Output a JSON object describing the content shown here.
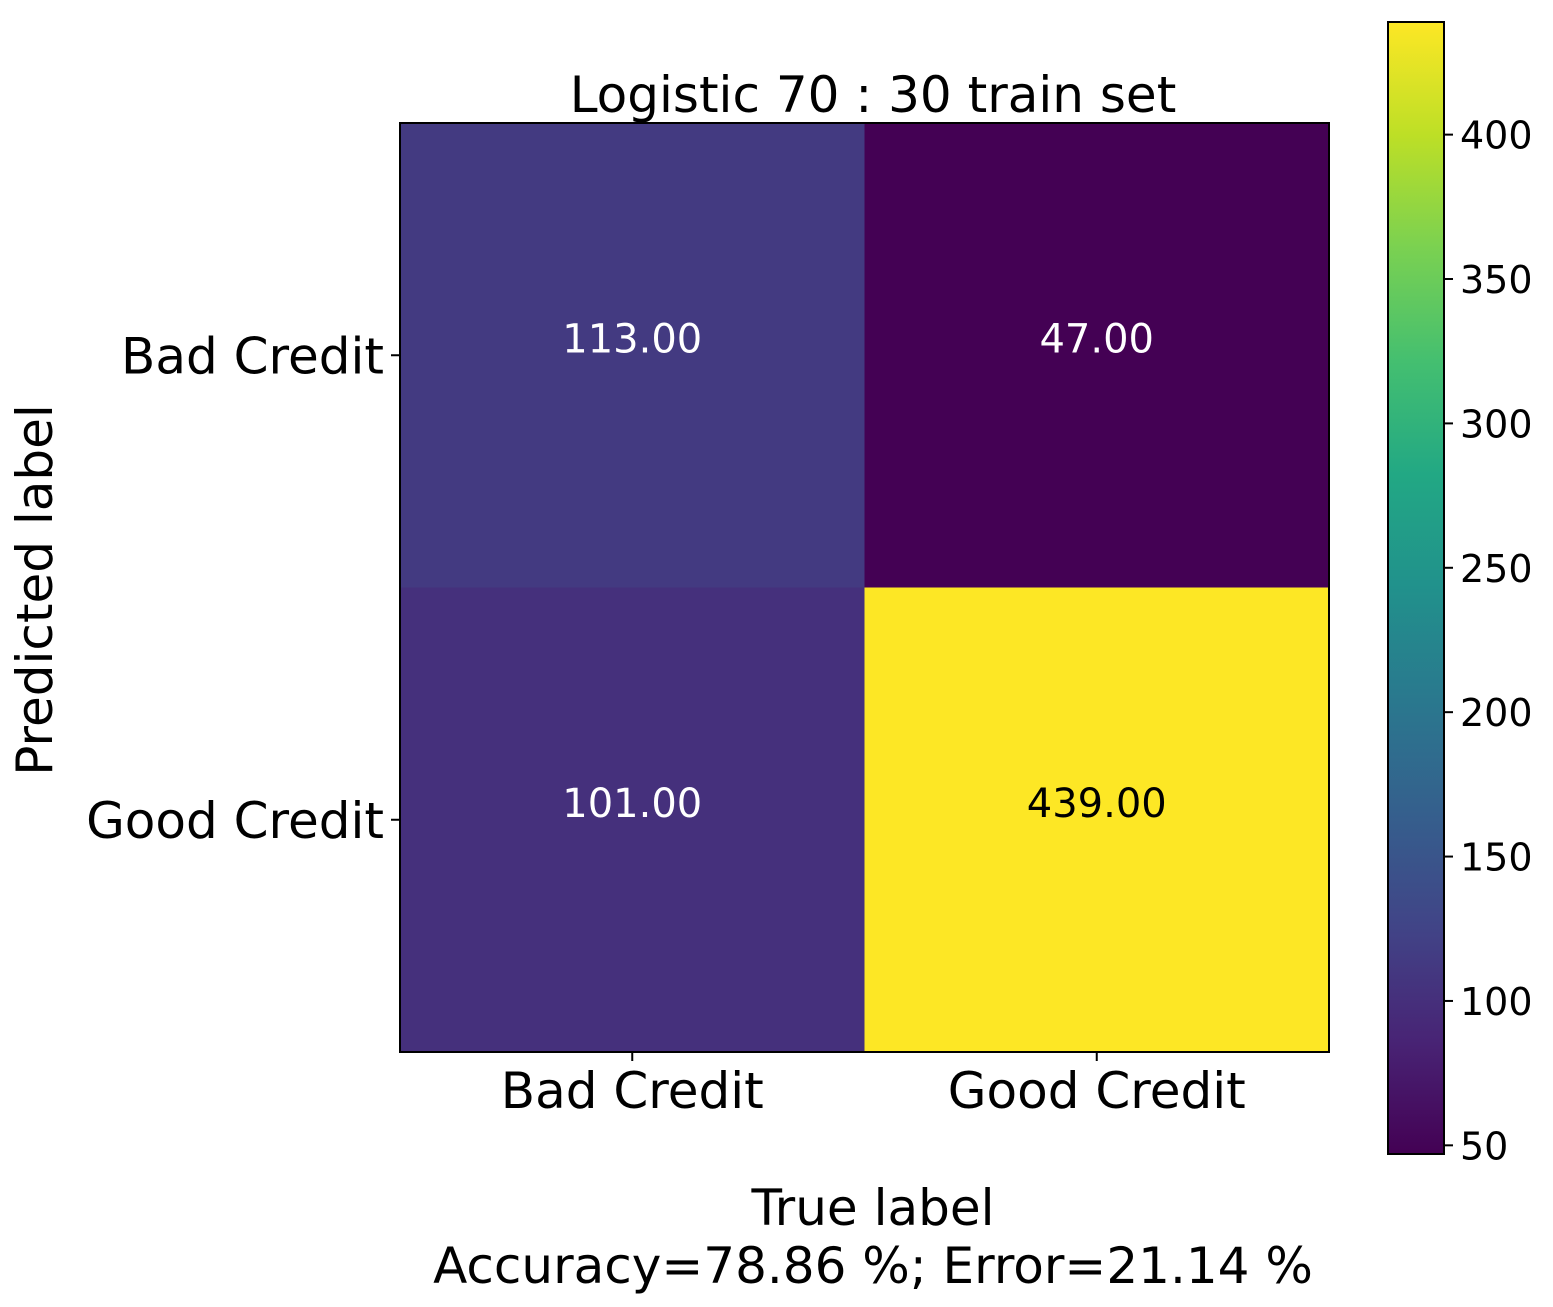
{
  "chart_data": {
    "type": "heatmap",
    "title": "Logistic 70 : 30 train set",
    "xlabel": "True label",
    "xlabel_note": "Accuracy=78.86 %; Error=21.14 %",
    "ylabel": "Predicted label",
    "x_categories": [
      "Bad Credit",
      "Good Credit"
    ],
    "y_categories": [
      "Bad Credit",
      "Good Credit"
    ],
    "values": [
      [
        113,
        47
      ],
      [
        101,
        439
      ]
    ],
    "cell_labels": [
      [
        "113.00",
        "47.00"
      ],
      [
        "101.00",
        "439.00"
      ]
    ],
    "colormap": "viridis",
    "colorbar": {
      "range": [
        47,
        439
      ],
      "ticks": [
        50,
        100,
        150,
        200,
        250,
        300,
        350,
        400
      ],
      "tick_labels": [
        "50",
        "100",
        "150",
        "200",
        "250",
        "300",
        "350",
        "400"
      ]
    },
    "grid": false
  }
}
